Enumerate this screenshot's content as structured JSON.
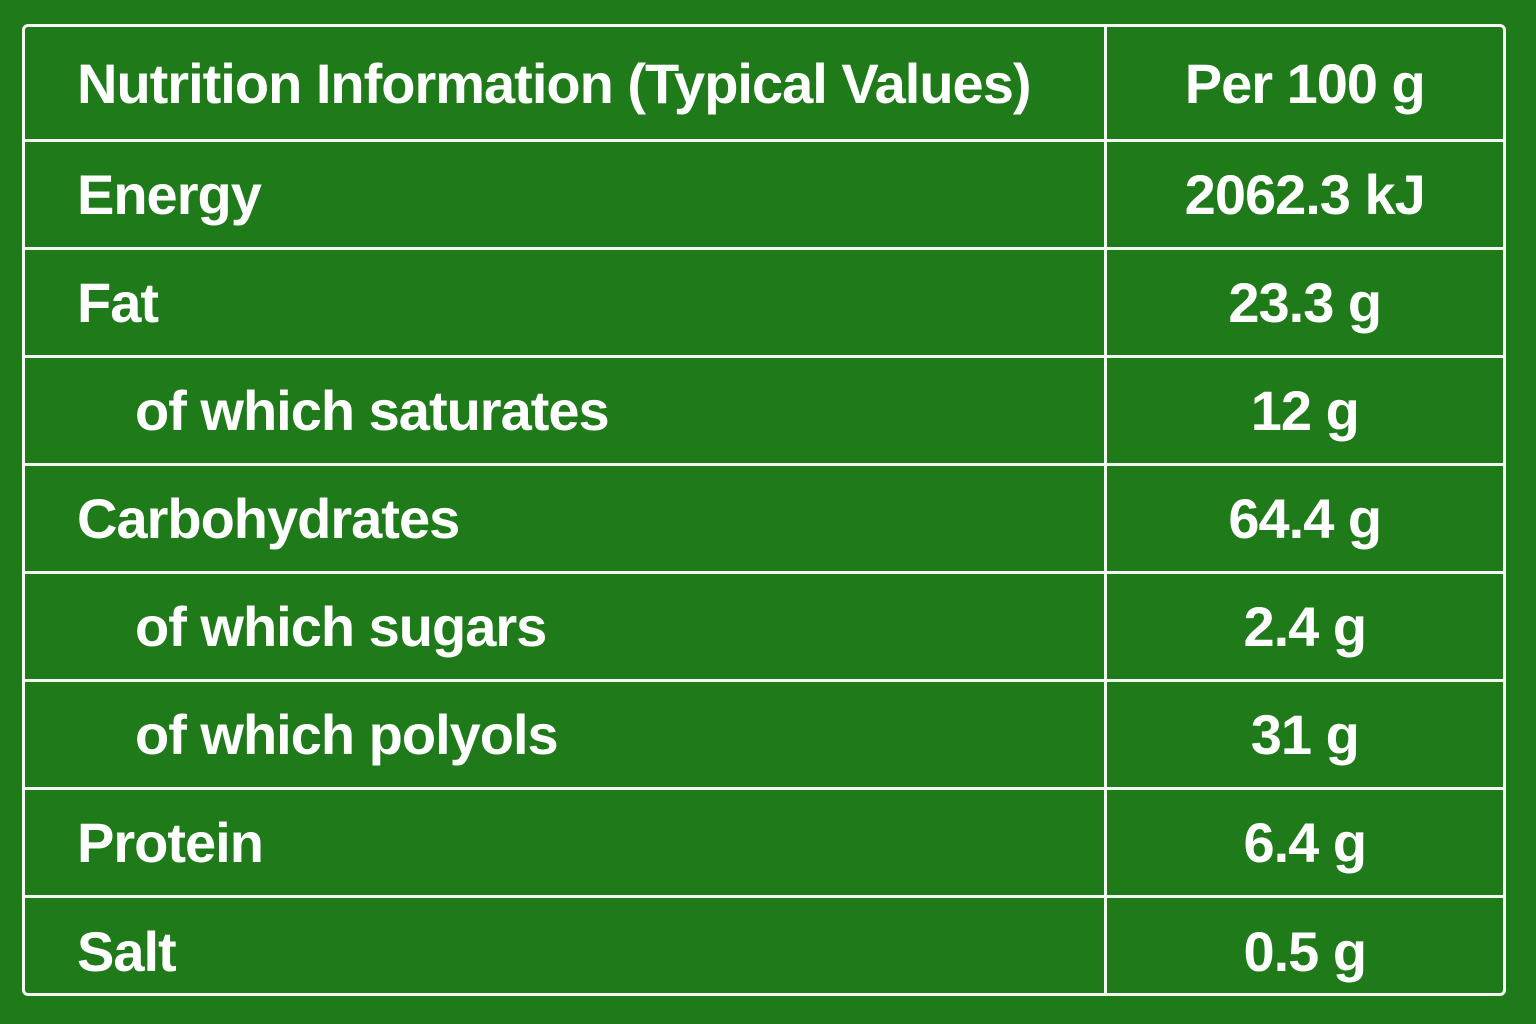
{
  "table": {
    "header": {
      "title": "Nutrition Information (Typical Values)",
      "column": "Per 100 g"
    },
    "rows": [
      {
        "label": "Energy",
        "value": "2062.3 kJ",
        "indent": false
      },
      {
        "label": "Fat",
        "value": "23.3 g",
        "indent": false
      },
      {
        "label": "of which saturates",
        "value": "12 g",
        "indent": true
      },
      {
        "label": "Carbohydrates",
        "value": "64.4 g",
        "indent": false
      },
      {
        "label": "of which sugars",
        "value": "2.4 g",
        "indent": true
      },
      {
        "label": "of which polyols",
        "value": "31 g",
        "indent": true
      },
      {
        "label": "Protein",
        "value": "6.4 g",
        "indent": false
      },
      {
        "label": "Salt",
        "value": "0.5 g",
        "indent": false
      }
    ]
  },
  "colors": {
    "background": "#1f7a1a",
    "border": "#f4fbf2",
    "text": "#ffffff"
  }
}
